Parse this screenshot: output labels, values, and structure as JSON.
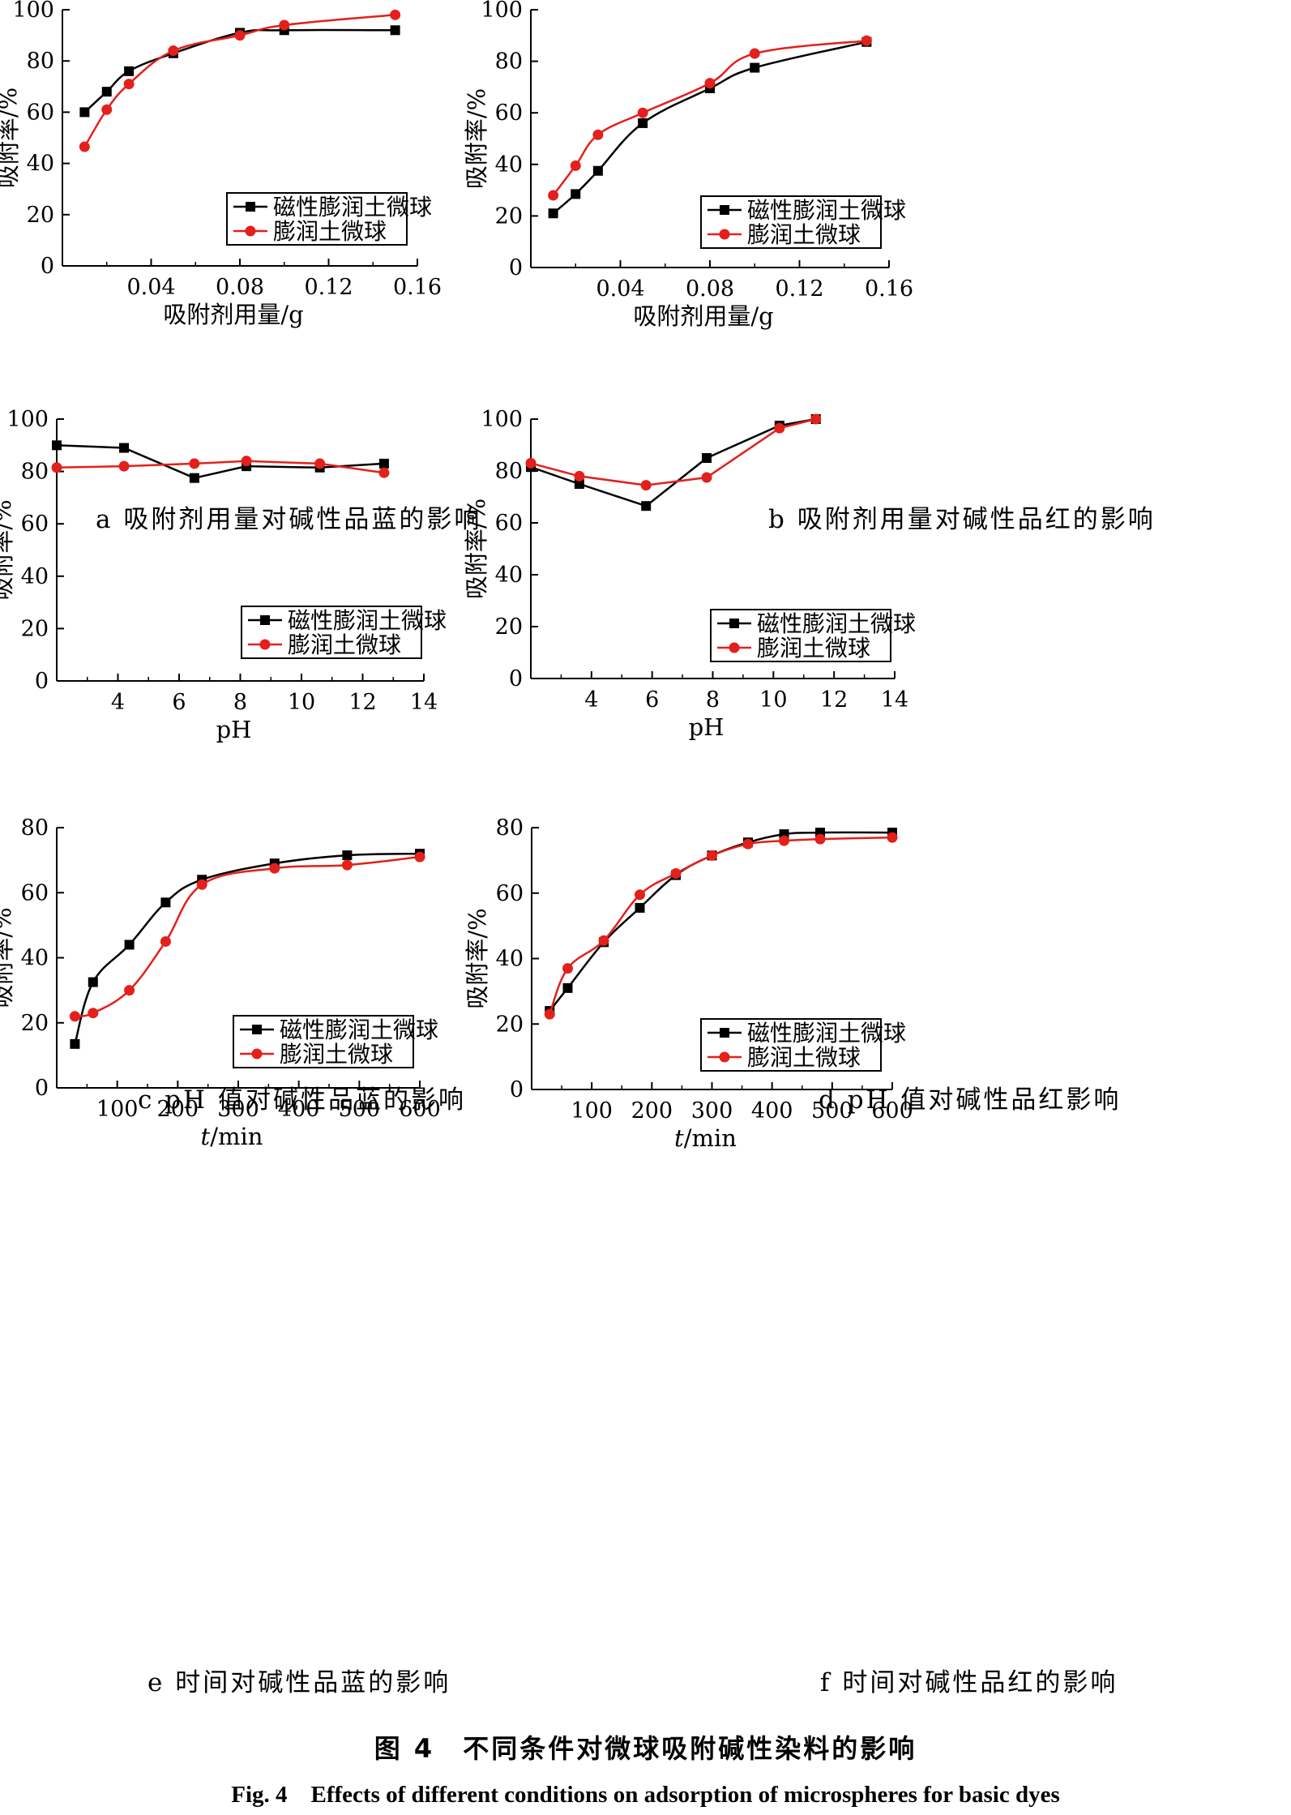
{
  "figure": {
    "title_zh": "图 4　不同条件对微球吸附碱性染料的影响",
    "title_en": "Fig. 4　Effects of different conditions on adsorption of microspheres for basic dyes"
  },
  "colors": {
    "magnetic": "#000000",
    "plain": "#e3201b"
  },
  "chart_data": [
    {
      "id": "a",
      "type": "line",
      "smooth": true,
      "caption": "a 吸附剂用量对碱性品蓝的影响",
      "xlabel": "吸附剂用量/g",
      "ylabel": "吸附率/%",
      "xlim": [
        0,
        0.16
      ],
      "ylim": [
        0,
        100
      ],
      "xticks": [
        0.04,
        0.08,
        0.12,
        0.16
      ],
      "xtick_labels": [
        "0.04",
        "0.08",
        "0.12",
        "0.16"
      ],
      "yticks": [
        0,
        20,
        40,
        60,
        80,
        100
      ],
      "legend": "lower-right",
      "series": [
        {
          "name": "磁性膨润土微球",
          "marker": "square",
          "x": [
            0.01,
            0.02,
            0.03,
            0.05,
            0.08,
            0.1,
            0.15
          ],
          "y": [
            60,
            68,
            76,
            83,
            91,
            92,
            92
          ]
        },
        {
          "name": "膨润土微球",
          "marker": "circle",
          "x": [
            0.01,
            0.02,
            0.03,
            0.05,
            0.08,
            0.1,
            0.15
          ],
          "y": [
            46.5,
            61,
            71,
            84,
            90,
            94,
            98
          ]
        }
      ]
    },
    {
      "id": "b",
      "type": "line",
      "smooth": true,
      "caption": "b 吸附剂用量对碱性品红的影响",
      "xlabel": "吸附剂用量/g",
      "ylabel": "吸附率/%",
      "xlim": [
        0,
        0.16
      ],
      "ylim": [
        0,
        100
      ],
      "xticks": [
        0.04,
        0.08,
        0.12,
        0.16
      ],
      "xtick_labels": [
        "0.04",
        "0.08",
        "0.12",
        "0.16"
      ],
      "yticks": [
        0,
        20,
        40,
        60,
        80,
        100
      ],
      "legend": "lower-right",
      "series": [
        {
          "name": "磁性膨润土微球",
          "marker": "square",
          "x": [
            0.01,
            0.02,
            0.03,
            0.05,
            0.08,
            0.1,
            0.15
          ],
          "y": [
            21,
            28.5,
            37.5,
            56,
            69.5,
            77.5,
            87.5
          ]
        },
        {
          "name": "膨润土微球",
          "marker": "circle",
          "x": [
            0.01,
            0.02,
            0.03,
            0.05,
            0.08,
            0.1,
            0.15
          ],
          "y": [
            28,
            39.5,
            51.5,
            60,
            71.5,
            83,
            88
          ]
        }
      ]
    },
    {
      "id": "c",
      "type": "line",
      "smooth": false,
      "caption": "c pH 值对碱性品蓝的影响",
      "xlabel": "pH",
      "ylabel": "吸附率/%",
      "xlim": [
        2,
        14
      ],
      "ylim": [
        0,
        100
      ],
      "xticks": [
        4,
        6,
        8,
        10,
        12,
        14
      ],
      "xtick_labels": [
        "4",
        "6",
        "8",
        "10",
        "12",
        "14"
      ],
      "yticks": [
        0,
        20,
        40,
        60,
        80,
        100
      ],
      "legend": "lower-right",
      "series": [
        {
          "name": "磁性膨润土微球",
          "marker": "square",
          "x": [
            2,
            4.2,
            6.5,
            8.2,
            10.6,
            12.7
          ],
          "y": [
            90,
            89,
            77.5,
            82,
            81.5,
            83
          ]
        },
        {
          "name": "膨润土微球",
          "marker": "circle",
          "x": [
            2,
            4.2,
            6.5,
            8.2,
            10.6,
            12.7
          ],
          "y": [
            81.5,
            82,
            83,
            84,
            83,
            79.5
          ]
        }
      ]
    },
    {
      "id": "d",
      "type": "line",
      "smooth": false,
      "caption": "d pH 值对碱性品红影响",
      "xlabel": "pH",
      "ylabel": "吸附率/%",
      "xlim": [
        2,
        14
      ],
      "ylim": [
        0,
        100
      ],
      "xticks": [
        4,
        6,
        8,
        10,
        12,
        14
      ],
      "xtick_labels": [
        "4",
        "6",
        "8",
        "10",
        "12",
        "14"
      ],
      "yticks": [
        0,
        20,
        40,
        60,
        80,
        100
      ],
      "legend": "lower-right",
      "series": [
        {
          "name": "磁性膨润土微球",
          "marker": "square",
          "x": [
            2,
            3.6,
            5.8,
            7.8,
            10.2,
            11.4
          ],
          "y": [
            81.5,
            75,
            66.5,
            85,
            97.5,
            100
          ]
        },
        {
          "name": "膨润土微球",
          "marker": "circle",
          "x": [
            2,
            3.6,
            5.8,
            7.8,
            10.2,
            11.4
          ],
          "y": [
            83,
            78,
            74.5,
            77.5,
            96.5,
            100
          ]
        }
      ]
    },
    {
      "id": "e",
      "type": "line",
      "smooth": true,
      "caption": "e 时间对碱性品蓝的影响",
      "xlabel": "t/min",
      "xlabel_italic_prefix": "t",
      "xlabel_suffix": "/min",
      "ylabel": "吸附率/%",
      "xlim": [
        0,
        600
      ],
      "ylim": [
        0,
        80
      ],
      "xticks": [
        100,
        200,
        300,
        400,
        500,
        600
      ],
      "xtick_labels": [
        "100",
        "200",
        "300",
        "400",
        "500",
        "600"
      ],
      "yticks": [
        0,
        20,
        40,
        60,
        80
      ],
      "legend": "lower-right",
      "series": [
        {
          "name": "磁性膨润土微球",
          "marker": "square",
          "x": [
            30,
            60,
            120,
            180,
            240,
            360,
            480,
            600
          ],
          "y": [
            13.5,
            32.5,
            44,
            57,
            64,
            69,
            71.5,
            72
          ]
        },
        {
          "name": "膨润土微球",
          "marker": "circle",
          "x": [
            30,
            60,
            120,
            180,
            240,
            360,
            480,
            600
          ],
          "y": [
            22,
            23,
            30,
            45,
            62.5,
            67.5,
            68.5,
            71
          ]
        }
      ]
    },
    {
      "id": "f",
      "type": "line",
      "smooth": true,
      "caption": "f 时间对碱性品红的影响",
      "xlabel": "t/min",
      "xlabel_italic_prefix": "t",
      "xlabel_suffix": "/min",
      "ylabel": "吸附率/%",
      "xlim": [
        0,
        600
      ],
      "ylim": [
        0,
        80
      ],
      "xticks": [
        100,
        200,
        300,
        400,
        500,
        600
      ],
      "xtick_labels": [
        "100",
        "200",
        "300",
        "400",
        "500",
        "600"
      ],
      "yticks": [
        0,
        20,
        40,
        60,
        80
      ],
      "legend": "lower-right",
      "series": [
        {
          "name": "磁性膨润土微球",
          "marker": "square",
          "x": [
            30,
            60,
            120,
            180,
            240,
            300,
            360,
            420,
            480,
            600
          ],
          "y": [
            24,
            31,
            45,
            55.5,
            65.5,
            71.5,
            75.5,
            78,
            78.5,
            78.5
          ]
        },
        {
          "name": "膨润土微球",
          "marker": "circle",
          "x": [
            30,
            60,
            120,
            180,
            240,
            300,
            360,
            420,
            480,
            600
          ],
          "y": [
            23,
            37,
            45.5,
            59.5,
            66,
            71.5,
            75,
            76,
            76.5,
            77
          ]
        }
      ]
    }
  ]
}
